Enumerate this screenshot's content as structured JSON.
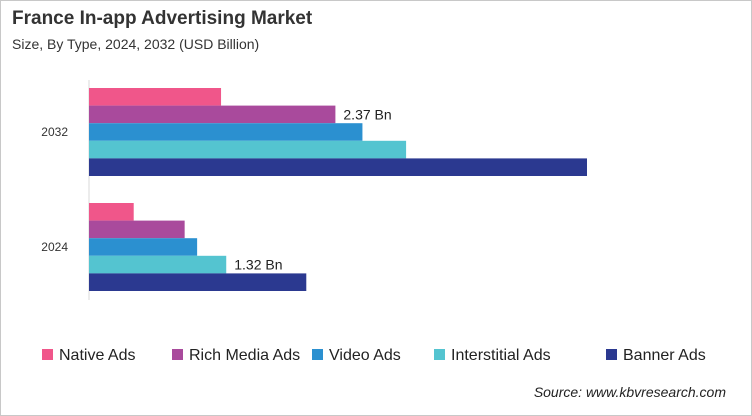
{
  "chart_data": {
    "type": "bar",
    "orientation": "horizontal",
    "title": "France In-app Advertising Market",
    "subtitle": "Size, By Type, 2024, 2032 (USD Billion)",
    "categories": [
      "2032",
      "2024"
    ],
    "series": [
      {
        "name": "Native Ads",
        "color": "#f0568a",
        "values": [
          1.27,
          0.43
        ]
      },
      {
        "name": "Rich Media Ads",
        "color": "#a94a9c",
        "values": [
          2.37,
          0.92
        ]
      },
      {
        "name": "Video Ads",
        "color": "#2b90d0",
        "values": [
          2.63,
          1.04
        ]
      },
      {
        "name": "Interstitial Ads",
        "color": "#54c4d0",
        "values": [
          3.05,
          1.32
        ]
      },
      {
        "name": "Banner Ads",
        "color": "#2b3990",
        "values": [
          4.79,
          2.09
        ]
      }
    ],
    "annotations": [
      {
        "category": "2032",
        "series": "Rich Media Ads",
        "text": "2.37 Bn"
      },
      {
        "category": "2024",
        "series": "Interstitial Ads",
        "text": "1.32 Bn"
      }
    ],
    "xlim": [
      0,
      6.25
    ],
    "grid": false,
    "legend_position": "bottom"
  },
  "source": "Source: www.kbvresearch.com"
}
